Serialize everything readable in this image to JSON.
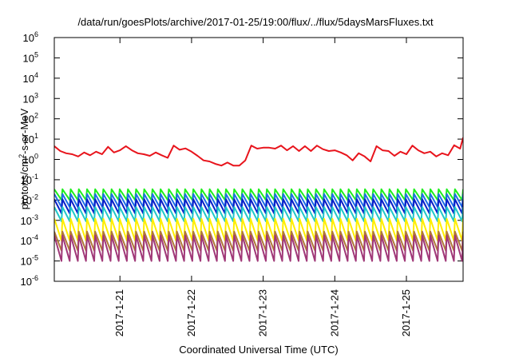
{
  "chart_data": {
    "type": "line",
    "title": "/data/run/goesPlots/archive/2017-01-25/19:00/flux/../flux/5daysMarsFluxes.txt",
    "xlabel": "Coordinated Universal Time (UTC)",
    "ylabel_prefix": "protons/cm",
    "ylabel_sup": "2",
    "ylabel_suffix": "-s-sr-MeV",
    "yscale": "log",
    "ylim": [
      1e-06,
      1000000.0
    ],
    "ytick_exponents": [
      -6,
      -5,
      -4,
      -3,
      -2,
      -1,
      0,
      1,
      2,
      3,
      4,
      5,
      6
    ],
    "ytick_base": "10",
    "xlim": [
      "2017-01-20T02:00",
      "2017-01-25T19:00"
    ],
    "xtick_values": [
      "2017-01-21T00:00",
      "2017-01-22T00:00",
      "2017-01-23T00:00",
      "2017-01-24T00:00",
      "2017-01-25T00:00"
    ],
    "xtick_labels": [
      "2017-1-21",
      "2017-1-22",
      "2017-1-23",
      "2017-1-24",
      "2017-1-25"
    ],
    "grid": false,
    "series": [
      {
        "color": "#e8141c",
        "style": "step",
        "x": [
          "2017-01-20T02:00",
          "2017-01-20T04:00",
          "2017-01-20T06:00",
          "2017-01-20T08:00",
          "2017-01-20T10:00",
          "2017-01-20T12:00",
          "2017-01-20T14:00",
          "2017-01-20T16:00",
          "2017-01-20T18:00",
          "2017-01-20T20:00",
          "2017-01-20T22:00",
          "2017-01-21T00:00",
          "2017-01-21T02:00",
          "2017-01-21T04:00",
          "2017-01-21T06:00",
          "2017-01-21T08:00",
          "2017-01-21T10:00",
          "2017-01-21T12:00",
          "2017-01-21T14:00",
          "2017-01-21T16:00",
          "2017-01-21T18:00",
          "2017-01-21T20:00",
          "2017-01-21T22:00",
          "2017-01-22T00:00",
          "2017-01-22T02:00",
          "2017-01-22T04:00",
          "2017-01-22T06:00",
          "2017-01-22T08:00",
          "2017-01-22T10:00",
          "2017-01-22T12:00",
          "2017-01-22T14:00",
          "2017-01-22T16:00",
          "2017-01-22T18:00",
          "2017-01-22T20:00",
          "2017-01-22T22:00",
          "2017-01-23T00:00",
          "2017-01-23T02:00",
          "2017-01-23T04:00",
          "2017-01-23T06:00",
          "2017-01-23T08:00",
          "2017-01-23T10:00",
          "2017-01-23T12:00",
          "2017-01-23T14:00",
          "2017-01-23T16:00",
          "2017-01-23T18:00",
          "2017-01-23T20:00",
          "2017-01-23T22:00",
          "2017-01-24T00:00",
          "2017-01-24T02:00",
          "2017-01-24T04:00",
          "2017-01-24T06:00",
          "2017-01-24T08:00",
          "2017-01-24T10:00",
          "2017-01-24T12:00",
          "2017-01-24T14:00",
          "2017-01-24T16:00",
          "2017-01-24T18:00",
          "2017-01-24T20:00",
          "2017-01-24T22:00",
          "2017-01-25T00:00",
          "2017-01-25T02:00",
          "2017-01-25T04:00",
          "2017-01-25T06:00",
          "2017-01-25T08:00",
          "2017-01-25T10:00",
          "2017-01-25T12:00",
          "2017-01-25T14:00",
          "2017-01-25T16:00",
          "2017-01-25T18:00",
          "2017-01-25T19:00"
        ],
        "values": [
          4.5,
          2.6,
          2.0,
          1.8,
          1.4,
          2.2,
          1.6,
          2.4,
          1.8,
          4.2,
          2.2,
          2.8,
          4.5,
          2.8,
          2.0,
          1.8,
          1.5,
          2.2,
          1.6,
          1.2,
          4.8,
          3.0,
          3.5,
          2.4,
          1.5,
          0.9,
          0.8,
          0.6,
          0.5,
          0.7,
          0.5,
          0.5,
          0.9,
          4.8,
          3.4,
          3.8,
          3.8,
          3.4,
          4.8,
          2.8,
          4.5,
          2.6,
          4.5,
          2.6,
          4.8,
          3.2,
          2.6,
          2.8,
          2.2,
          1.6,
          0.9,
          2.0,
          1.4,
          0.8,
          4.5,
          2.8,
          2.6,
          1.5,
          2.4,
          1.8,
          4.8,
          2.8,
          2.0,
          2.4,
          1.4,
          2.0,
          1.6,
          5.0,
          3.4,
          12
        ]
      },
      {
        "color": "#1eee1e",
        "style": "sawtooth",
        "periods": 50,
        "high": 0.034,
        "low": 0.01
      },
      {
        "color": "#1e6ee6",
        "style": "sawtooth",
        "periods": 50,
        "high": 0.02,
        "low": 0.0045
      },
      {
        "color": "#0a20c8",
        "style": "sawtooth",
        "periods": 50,
        "high": 0.011,
        "low": 0.0022
      },
      {
        "color": "#20c8c8",
        "style": "sawtooth",
        "periods": 50,
        "high": 0.0045,
        "low": 0.0009
      },
      {
        "color": "#ffee00",
        "style": "sawtooth",
        "periods": 50,
        "high": 0.0012,
        "low": 0.0001
      },
      {
        "color": "#b07838",
        "style": "sawtooth",
        "periods": 50,
        "high": 0.00028,
        "low": 3.2e-05
      },
      {
        "color": "#a03878",
        "style": "sawtooth",
        "periods": 50,
        "high": 0.00018,
        "low": 1e-05
      }
    ]
  }
}
